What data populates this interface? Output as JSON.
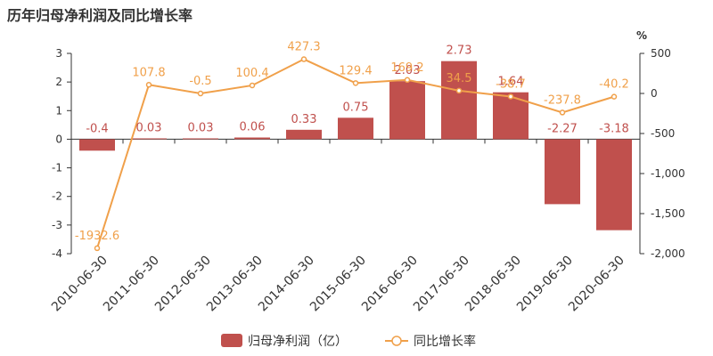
{
  "chart_data": {
    "type": "bar+line",
    "title": "历年归母净利润及同比增长率",
    "categories": [
      "2010-06-30",
      "2011-06-30",
      "2012-06-30",
      "2013-06-30",
      "2014-06-30",
      "2015-06-30",
      "2016-06-30",
      "2017-06-30",
      "2018-06-30",
      "2019-06-30",
      "2020-06-30"
    ],
    "series": [
      {
        "name": "归母净利润（亿）",
        "type": "bar",
        "axis": "left",
        "color": "#c0504d",
        "values": [
          -0.4,
          0.03,
          0.03,
          0.06,
          0.33,
          0.75,
          2.03,
          2.73,
          1.64,
          -2.27,
          -3.18
        ],
        "labels": [
          "-0.4",
          "0.03",
          "0.03",
          "0.06",
          "0.33",
          "0.75",
          "2.03",
          "2.73",
          "1.64",
          "-2.27",
          "-3.18"
        ]
      },
      {
        "name": "同比增长率",
        "type": "line",
        "axis": "right",
        "color": "#f0a04a",
        "values": [
          -1932.6,
          107.8,
          -0.5,
          100.4,
          427.3,
          129.4,
          169.2,
          34.5,
          -38.7,
          -237.8,
          -40.2
        ],
        "labels": [
          "-1932.6",
          "107.8",
          "-0.5",
          "100.4",
          "427.3",
          "129.4",
          "169.2",
          "34.5",
          "-38.7",
          "-237.8",
          "-40.2"
        ]
      }
    ],
    "left_axis": {
      "min": -4,
      "max": 3,
      "ticks": [
        "3",
        "2",
        "1",
        "0",
        "-1",
        "-2",
        "-3",
        "-4"
      ]
    },
    "right_axis": {
      "unit": "%",
      "min": -2000,
      "max": 500,
      "ticks": [
        "500",
        "0",
        "-500",
        "-1,000",
        "-1,500",
        "-2,000"
      ]
    },
    "legend": "bottom-center"
  }
}
